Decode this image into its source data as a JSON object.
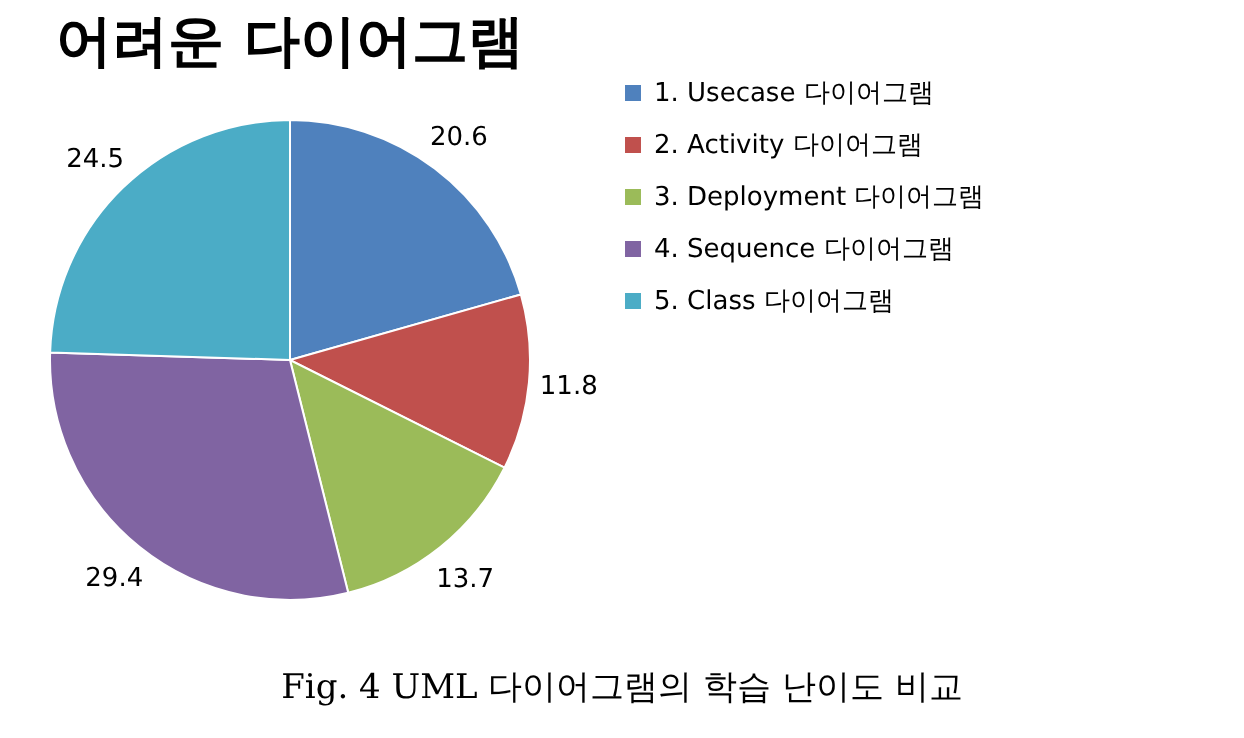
{
  "chart_data": {
    "type": "pie",
    "title": "어려운 다이어그램",
    "categories": [
      "1. Usecase 다이어그램",
      "2. Activity 다이어그램",
      "3. Deployment 다이어그램",
      "4. Sequence 다이어그램",
      "5. Class 다이어그램"
    ],
    "values": [
      20.6,
      11.8,
      13.7,
      29.4,
      24.5
    ],
    "colors": [
      "#4f81bd",
      "#c0504d",
      "#9bbb59",
      "#8064a2",
      "#4bacc6"
    ],
    "data_labels": true,
    "legend": "right",
    "annotations": [
      "Fig. 4 UML 다이어그램의 학습 난이도 비교"
    ]
  }
}
